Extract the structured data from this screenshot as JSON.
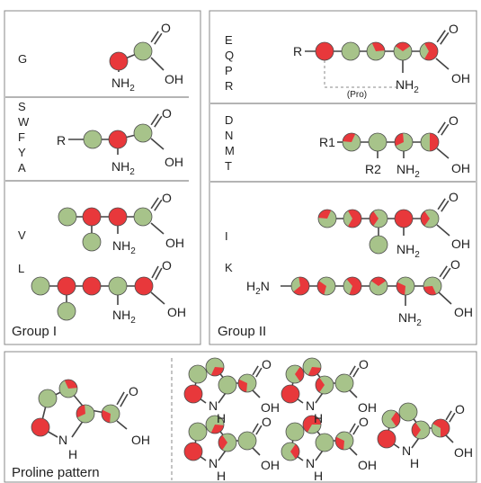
{
  "colors": {
    "green": "#a7c38a",
    "red": "#e8383b",
    "outline": "#4d4d4d",
    "bond": "#444444",
    "divider": "#888888",
    "dash": "#888888"
  },
  "atom_text": {
    "nh2": "NH",
    "nh2_sub": "2",
    "h2n": "H",
    "h2n_sub": "2",
    "h2n_n": "N",
    "oh": "OH",
    "o": "O",
    "r": "R",
    "r1": "R1",
    "r2": "R2",
    "n": "N",
    "h": "H",
    "pro": "(Pro)"
  },
  "group1": {
    "title": "Group I",
    "rows": [
      {
        "name": "row-g",
        "letters": [
          "G"
        ]
      },
      {
        "name": "row-swfya",
        "letters": [
          "S",
          "W",
          "F",
          "Y",
          "A"
        ]
      },
      {
        "name": "row-v",
        "letters": [
          "V"
        ]
      },
      {
        "name": "row-l",
        "letters": [
          "L"
        ]
      }
    ]
  },
  "group2": {
    "title": "Group II",
    "rows": [
      {
        "name": "row-eqpr",
        "letters": [
          "E",
          "Q",
          "P",
          "R"
        ]
      },
      {
        "name": "row-dnmt",
        "letters": [
          "D",
          "N",
          "M",
          "T"
        ]
      },
      {
        "name": "row-i",
        "letters": [
          "I"
        ]
      },
      {
        "name": "row-k",
        "letters": [
          "K"
        ]
      }
    ]
  },
  "proline": {
    "title": "Proline pattern"
  }
}
